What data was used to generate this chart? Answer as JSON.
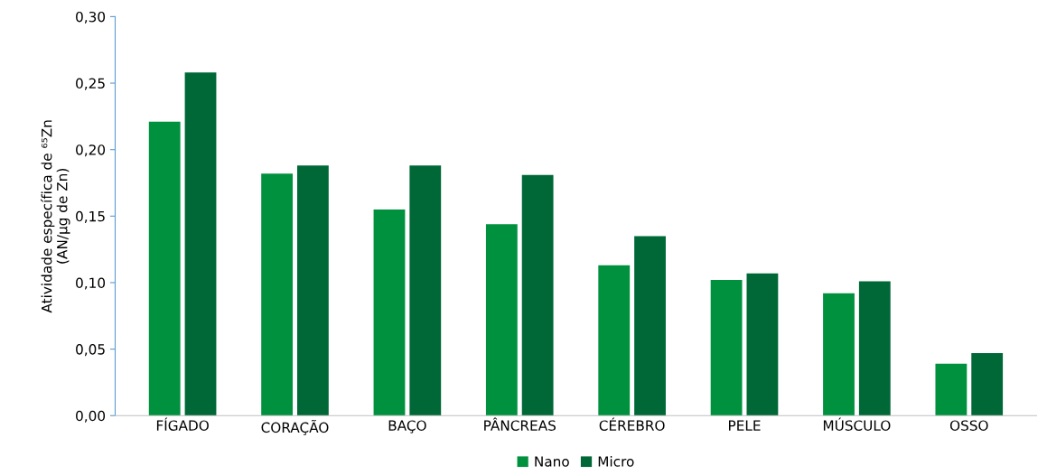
{
  "chart_data": {
    "type": "bar",
    "ylabel": "Atividade específica de ⁶⁵Zn\n(AN/µg de Zn)",
    "categories": [
      "FÍGADO",
      "CORAÇÃO",
      "BAÇO",
      "PÂNCREAS",
      "CÉREBRO",
      "PELE",
      "MÚSCULO",
      "OSSO"
    ],
    "series": [
      {
        "name": "Nano",
        "color": "#00913f",
        "values": [
          0.221,
          0.182,
          0.155,
          0.144,
          0.113,
          0.102,
          0.092,
          0.039
        ]
      },
      {
        "name": "Micro",
        "color": "#006837",
        "values": [
          0.258,
          0.188,
          0.188,
          0.181,
          0.135,
          0.107,
          0.101,
          0.047
        ]
      }
    ],
    "ylim": [
      0,
      0.3
    ],
    "yticks": [
      {
        "value": 0,
        "label": "0,00"
      },
      {
        "value": 0.05,
        "label": "0,05"
      },
      {
        "value": 0.1,
        "label": "0,10"
      },
      {
        "value": 0.15,
        "label": "0,15"
      },
      {
        "value": 0.2,
        "label": "0,20"
      },
      {
        "value": 0.25,
        "label": "0,25"
      },
      {
        "value": 0.3,
        "label": "0,30"
      }
    ],
    "grid": false,
    "legend": "bottom"
  }
}
